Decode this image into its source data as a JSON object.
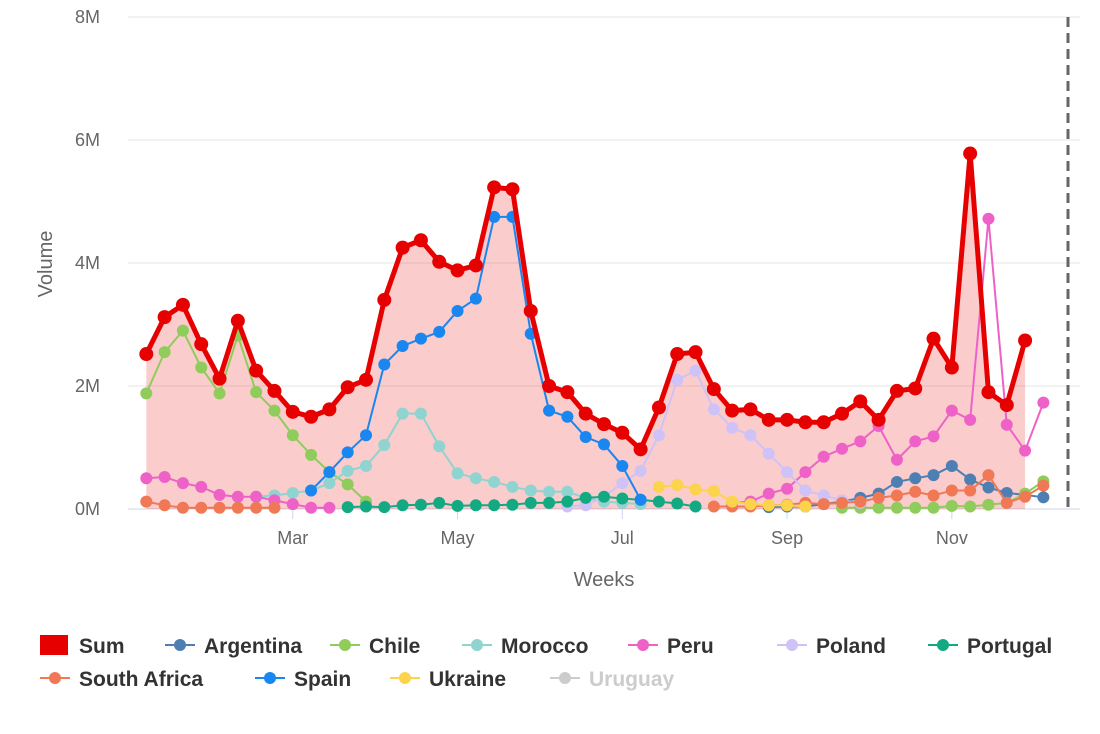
{
  "chart_data": {
    "type": "line",
    "xlabel": "Weeks",
    "ylabel": "Volume",
    "ylim": [
      0,
      8
    ],
    "y_ticks": [
      "0M",
      "2M",
      "4M",
      "6M",
      "8M"
    ],
    "x_ticks": [
      {
        "label": "Mar",
        "week": 9
      },
      {
        "label": "May",
        "week": 18
      },
      {
        "label": "Jul",
        "week": 27
      },
      {
        "label": "Sep",
        "week": 36
      },
      {
        "label": "Nov",
        "week": 45
      }
    ],
    "x_range": [
      0,
      52
    ],
    "y_unit": "M",
    "grid": "horizontal",
    "legend_position": "bottom",
    "series": [
      {
        "name": "Sum",
        "color": "#e60000",
        "area": true,
        "width": 5,
        "start": 1,
        "values": [
          2.52,
          3.12,
          3.32,
          2.68,
          2.12,
          3.06,
          2.25,
          1.92,
          1.58,
          1.5,
          1.62,
          1.98,
          2.1,
          3.4,
          4.25,
          4.37,
          4.02,
          3.88,
          3.96,
          5.23,
          5.2,
          3.22,
          2.0,
          1.9,
          1.55,
          1.38,
          1.24,
          0.97,
          1.65,
          2.52,
          2.55,
          1.95,
          1.6,
          1.62,
          1.45,
          1.45,
          1.41,
          1.41,
          1.55,
          1.75,
          1.45,
          1.92,
          1.96,
          2.77,
          2.3,
          5.78,
          1.9,
          1.69,
          2.74
        ]
      },
      {
        "name": "Argentina",
        "color": "#4e7fb2",
        "start": 35,
        "values": [
          0.03,
          0.04,
          0.04,
          0.08,
          0.12,
          0.18,
          0.25,
          0.44,
          0.5,
          0.55,
          0.7,
          0.48,
          0.35,
          0.26,
          0.23,
          0.19
        ]
      },
      {
        "name": "Chile",
        "color": "#90cc5b",
        "start": 1,
        "values": [
          1.88,
          2.55,
          2.9,
          2.3,
          1.88,
          2.82,
          1.9,
          1.6,
          1.2,
          0.88,
          0.6,
          0.4,
          0.12
        ]
      },
      {
        "name": "Chile (late)",
        "color": "#90cc5b",
        "start": 39,
        "in_legend": false,
        "values": [
          0.02,
          0.02,
          0.02,
          0.02,
          0.02,
          0.02,
          0.05,
          0.04,
          0.07,
          0.1,
          0.25,
          0.45
        ]
      },
      {
        "name": "Morocco",
        "color": "#8fd4d0",
        "start": 7,
        "values": [
          0.2,
          0.22,
          0.26,
          0.3,
          0.42,
          0.62,
          0.7,
          1.04,
          1.55,
          1.55,
          1.02,
          0.58,
          0.5,
          0.44,
          0.36,
          0.3,
          0.28,
          0.28,
          0.18,
          0.12,
          0.1,
          0.08
        ]
      },
      {
        "name": "Peru",
        "color": "#ee62c8",
        "start": 1,
        "values": [
          0.5,
          0.52,
          0.42,
          0.36,
          0.23,
          0.2,
          0.2,
          0.14,
          0.08,
          0.02,
          0.02
        ]
      },
      {
        "name": "Peru (late)",
        "color": "#ee62c8",
        "start": 33,
        "in_legend": false,
        "values": [
          0.1,
          0.12,
          0.25,
          0.33,
          0.6,
          0.85,
          0.98,
          1.1,
          1.35,
          0.8,
          1.1,
          1.18,
          1.6,
          1.45,
          4.72,
          1.37,
          0.95,
          1.73
        ]
      },
      {
        "name": "Poland",
        "color": "#cfc2f7",
        "start": 24,
        "values": [
          0.04,
          0.06,
          0.2,
          0.42,
          0.62,
          1.2,
          2.1,
          2.25,
          1.62,
          1.32,
          1.2,
          0.9,
          0.6,
          0.3,
          0.22,
          0.14,
          0.1
        ]
      },
      {
        "name": "Portugal",
        "color": "#13aa83",
        "start": 12,
        "values": [
          0.03,
          0.04,
          0.03,
          0.06,
          0.07,
          0.1,
          0.05,
          0.06,
          0.06,
          0.07,
          0.1,
          0.1,
          0.12,
          0.18,
          0.2,
          0.17,
          0.15,
          0.12,
          0.09,
          0.04
        ]
      },
      {
        "name": "South Africa",
        "color": "#f07855",
        "start": 1,
        "values": [
          0.12,
          0.06,
          0.02,
          0.02,
          0.02,
          0.02,
          0.02,
          0.02
        ]
      },
      {
        "name": "South Africa (late)",
        "color": "#f07855",
        "start": 32,
        "in_legend": false,
        "values": [
          0.04,
          0.04,
          0.04,
          0.06,
          0.07,
          0.1,
          0.08,
          0.1,
          0.12,
          0.18,
          0.22,
          0.28,
          0.22,
          0.3,
          0.3,
          0.55,
          0.1,
          0.2,
          0.38
        ]
      },
      {
        "name": "Spain",
        "color": "#1a86f0",
        "start": 10,
        "values": [
          0.3,
          0.6,
          0.92,
          1.2,
          2.35,
          2.65,
          2.77,
          2.88,
          3.22,
          3.42,
          4.75,
          4.75,
          2.85,
          1.6,
          1.5,
          1.17,
          1.05,
          0.7,
          0.15
        ]
      },
      {
        "name": "Ukraine",
        "color": "#fcd34d",
        "start": 29,
        "values": [
          0.36,
          0.39,
          0.32,
          0.29,
          0.12,
          0.08,
          0.06,
          0.06,
          0.04
        ]
      },
      {
        "name": "Uruguay",
        "color": "#cccccc",
        "start": 1,
        "hidden": true,
        "values": []
      }
    ]
  }
}
